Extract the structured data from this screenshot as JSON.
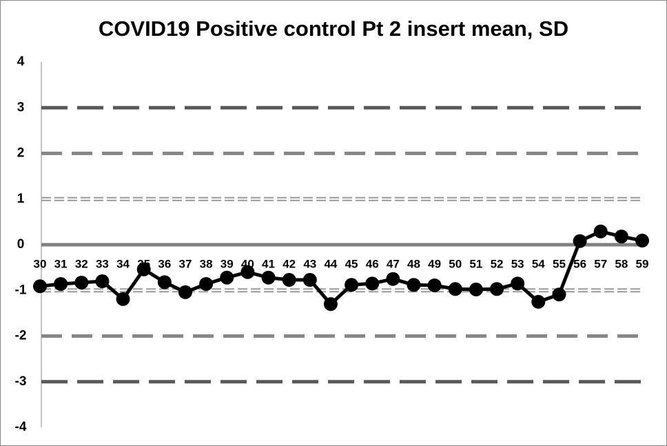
{
  "chart_data": {
    "type": "line",
    "title": "COVID19 Positive control Pt 2 insert mean, SD",
    "categories": [
      "30",
      "31",
      "32",
      "33",
      "34",
      "35",
      "36",
      "37",
      "38",
      "39",
      "40",
      "41",
      "42",
      "43",
      "44",
      "45",
      "46",
      "47",
      "48",
      "49",
      "50",
      "51",
      "52",
      "53",
      "54",
      "55",
      "56",
      "57",
      "58",
      "59"
    ],
    "series": [
      {
        "name": "Pt 2 insert",
        "color": "#000000",
        "values": [
          -0.91,
          -0.86,
          -0.83,
          -0.8,
          -1.19,
          -0.54,
          -0.82,
          -1.04,
          -0.86,
          -0.72,
          -0.6,
          -0.72,
          -0.77,
          -0.77,
          -1.3,
          -0.88,
          -0.85,
          -0.75,
          -0.88,
          -0.89,
          -0.97,
          -0.98,
          -0.97,
          -0.85,
          -1.25,
          -1.09,
          0.08,
          0.29,
          0.18,
          0.09
        ]
      }
    ],
    "ylim": [
      -4,
      4
    ],
    "yticks": [
      -4,
      -3,
      -2,
      -1,
      0,
      1,
      2,
      3,
      4
    ]
  }
}
